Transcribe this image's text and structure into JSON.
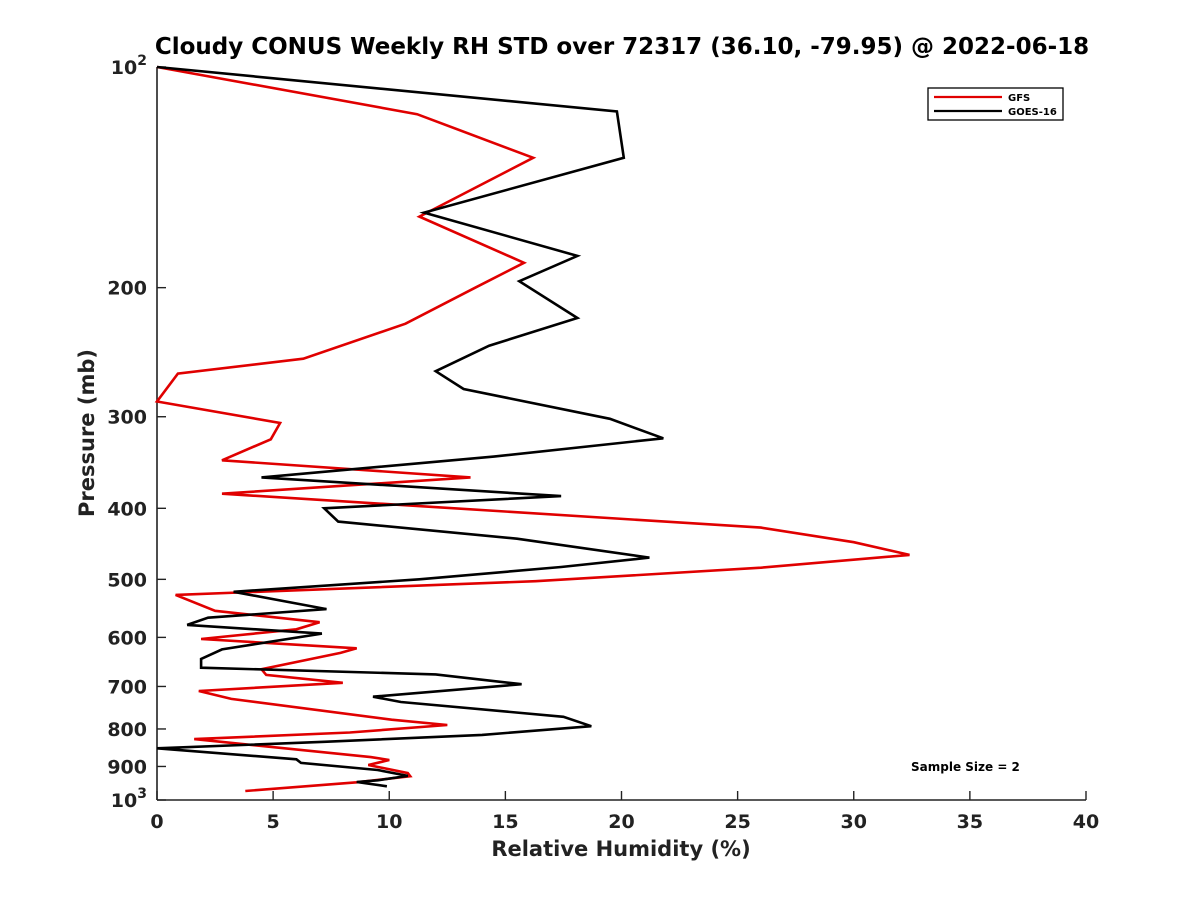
{
  "chart_data": {
    "type": "line",
    "title": "Cloudy CONUS Weekly RH STD over 72317 (36.10, -79.95) @ 2022-06-18",
    "xlabel": "Relative Humidity (%)",
    "ylabel": "Pressure (mb)",
    "xlim": [
      0,
      40
    ],
    "ylim": [
      100,
      1000
    ],
    "y_scale": "log",
    "y_reversed": true,
    "grid": false,
    "legend_position": "top-right",
    "x_ticks": [
      "0",
      "5",
      "10",
      "15",
      "20",
      "25",
      "30",
      "35",
      "40"
    ],
    "y_ticks": [
      {
        "value": 100,
        "base": "10",
        "exp": "2"
      },
      {
        "value": 200,
        "label": "200"
      },
      {
        "value": 300,
        "label": "300"
      },
      {
        "value": 400,
        "label": "400"
      },
      {
        "value": 500,
        "label": "500"
      },
      {
        "value": 600,
        "label": "600"
      },
      {
        "value": 700,
        "label": "700"
      },
      {
        "value": 800,
        "label": "800"
      },
      {
        "value": 900,
        "label": "900"
      },
      {
        "value": 1000,
        "base": "10",
        "exp": "3"
      }
    ],
    "annotation": "Sample Size = 2",
    "series": [
      {
        "name": "GFS",
        "color": "#e00000",
        "points": [
          [
            0,
            100
          ],
          [
            11.2,
            116
          ],
          [
            16.2,
            133
          ],
          [
            11.3,
            160
          ],
          [
            15.8,
            185
          ],
          [
            13.7,
            200
          ],
          [
            10.7,
            224
          ],
          [
            6.3,
            250
          ],
          [
            0.9,
            262
          ],
          [
            0,
            286
          ],
          [
            5.3,
            306
          ],
          [
            4.9,
            322
          ],
          [
            2.8,
            344
          ],
          [
            13.5,
            363
          ],
          [
            2.8,
            382
          ],
          [
            26,
            425
          ],
          [
            30,
            445
          ],
          [
            32.4,
            463
          ],
          [
            26,
            482
          ],
          [
            16.3,
            503
          ],
          [
            0.8,
            525
          ],
          [
            2.5,
            552
          ],
          [
            7,
            572
          ],
          [
            6,
            585
          ],
          [
            1.9,
            603
          ],
          [
            8.6,
            621
          ],
          [
            7.9,
            630
          ],
          [
            4.5,
            663
          ],
          [
            4.7,
            675
          ],
          [
            8,
            692
          ],
          [
            1.8,
            710
          ],
          [
            3.2,
            728
          ],
          [
            10.1,
            777
          ],
          [
            12.5,
            790
          ],
          [
            8.3,
            809
          ],
          [
            1.6,
            826
          ],
          [
            9.2,
            874
          ],
          [
            10,
            882
          ],
          [
            9.1,
            896
          ],
          [
            10.8,
            919
          ],
          [
            10.9,
            928
          ],
          [
            8.6,
            946
          ],
          [
            3.8,
            972
          ]
        ]
      },
      {
        "name": "GOES-16",
        "color": "#000000",
        "points": [
          [
            0,
            100
          ],
          [
            19.8,
            115
          ],
          [
            20.1,
            133
          ],
          [
            11.5,
            158
          ],
          [
            18.1,
            181
          ],
          [
            15.6,
            196
          ],
          [
            18.1,
            220
          ],
          [
            14.3,
            240
          ],
          [
            12,
            260
          ],
          [
            13.2,
            275
          ],
          [
            19.5,
            302
          ],
          [
            21.8,
            321
          ],
          [
            14.5,
            340
          ],
          [
            4.5,
            363
          ],
          [
            17.4,
            385
          ],
          [
            7.2,
            400
          ],
          [
            7.8,
            417
          ],
          [
            15.5,
            440
          ],
          [
            21.2,
            467
          ],
          [
            17.4,
            481
          ],
          [
            11.3,
            500
          ],
          [
            3.3,
            520
          ],
          [
            7.3,
            549
          ],
          [
            2.2,
            564
          ],
          [
            1.3,
            577
          ],
          [
            7.1,
            593
          ],
          [
            2.8,
            623
          ],
          [
            1.9,
            642
          ],
          [
            1.9,
            660
          ],
          [
            12,
            674
          ],
          [
            15.7,
            695
          ],
          [
            9.3,
            723
          ],
          [
            10.5,
            735
          ],
          [
            17.5,
            770
          ],
          [
            18.7,
            793
          ],
          [
            14,
            815
          ],
          [
            7.2,
            833
          ],
          [
            0,
            850
          ],
          [
            6,
            880
          ],
          [
            6.2,
            890
          ],
          [
            9.5,
            910
          ],
          [
            10.8,
            927
          ],
          [
            9.5,
            940
          ],
          [
            8.6,
            945
          ],
          [
            9.9,
            958
          ]
        ]
      }
    ]
  }
}
